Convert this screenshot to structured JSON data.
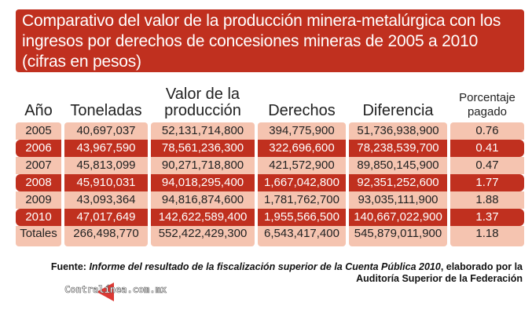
{
  "title": "Comparativo del valor de la producción minera-metalúrgica con los ingresos por derechos de concesiones mineras de 2005 a 2010 (cifras en pesos)",
  "headers": [
    "Año",
    "Toneladas",
    "Valor de la producción",
    "Derechos",
    "Diferencia",
    "Porcentaje pagado"
  ],
  "rows": [
    [
      "2005",
      "40,697,037",
      "52,131,714,800",
      "394,775,900",
      "51,736,938,900",
      "0.76"
    ],
    [
      "2006",
      "43,967,590",
      "78,561,236,300",
      "322,696,600",
      "78,238,539,700",
      "0.41"
    ],
    [
      "2007",
      "45,813,099",
      "90,271,718,800",
      "421,572,900",
      "89,850,145,900",
      "0.47"
    ],
    [
      "2008",
      "45,910,031",
      "94,018,295,400",
      "1,667,042,800",
      "92,351,252,600",
      "1.77"
    ],
    [
      "2009",
      "43,093,364",
      "94,816,874,600",
      "1,781,762,700",
      "93,035,111,900",
      "1.88"
    ],
    [
      "2010",
      "47,017,649",
      "142,622,589,400",
      "1,955,566,500",
      "140,667,022,900",
      "1.37"
    ],
    [
      "Totales",
      "266,498,770",
      "552,422,429,300",
      "6,543,417,400",
      "545,879,011,900",
      "1.18"
    ]
  ],
  "source": {
    "label": "Fuente:",
    "title": "Informe del resultado de la fiscalización superior de la Cuenta Pública 2010",
    "rest": ", elaborado por la Auditoría Superior de la Federación"
  },
  "watermark": "Contralínea.com.mx",
  "colors": {
    "accent": "#c0301f",
    "cell": "#f5c4b0"
  }
}
